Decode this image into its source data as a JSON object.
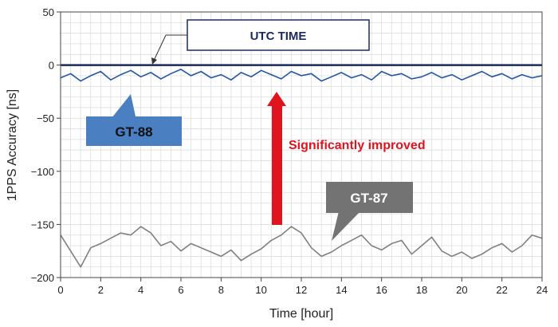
{
  "chart_data": {
    "type": "line",
    "xlabel": "Time [hour]",
    "ylabel": "1PPS Accuracy [ns]",
    "xlim": [
      0,
      24
    ],
    "ylim": [
      -200,
      50
    ],
    "x_ticks": [
      0,
      2,
      4,
      6,
      8,
      10,
      12,
      14,
      16,
      18,
      20,
      22,
      24
    ],
    "y_ticks": [
      50,
      0,
      -50,
      -100,
      -150,
      -200
    ],
    "grid": true,
    "reference_line": {
      "label": "UTC TIME",
      "y": 0,
      "color": "#1a2a5e"
    },
    "series": [
      {
        "name": "GT-88",
        "color": "#2456a6",
        "x": [
          0,
          0.5,
          1,
          1.5,
          2,
          2.5,
          3,
          3.5,
          4,
          4.5,
          5,
          5.5,
          6,
          6.5,
          7,
          7.5,
          8,
          8.5,
          9,
          9.5,
          10,
          10.5,
          11,
          11.5,
          12,
          12.5,
          13,
          13.5,
          14,
          14.5,
          15,
          15.5,
          16,
          16.5,
          17,
          17.5,
          18,
          18.5,
          19,
          19.5,
          20,
          20.5,
          21,
          21.5,
          22,
          22.5,
          23,
          23.5,
          24
        ],
        "values": [
          -12,
          -8,
          -15,
          -10,
          -6,
          -14,
          -9,
          -5,
          -11,
          -7,
          -13,
          -8,
          -4,
          -10,
          -6,
          -12,
          -9,
          -14,
          -7,
          -11,
          -5,
          -9,
          -13,
          -6,
          -10,
          -8,
          -15,
          -11,
          -7,
          -12,
          -9,
          -14,
          -6,
          -10,
          -8,
          -13,
          -11,
          -7,
          -12,
          -9,
          -14,
          -10,
          -6,
          -11,
          -8,
          -13,
          -9,
          -12,
          -10
        ]
      },
      {
        "name": "GT-87",
        "color": "#808080",
        "x": [
          0,
          0.5,
          1,
          1.5,
          2,
          2.5,
          3,
          3.5,
          4,
          4.5,
          5,
          5.5,
          6,
          6.5,
          7,
          7.5,
          8,
          8.5,
          9,
          9.5,
          10,
          10.5,
          11,
          11.5,
          12,
          12.5,
          13,
          13.5,
          14,
          14.5,
          15,
          15.5,
          16,
          16.5,
          17,
          17.5,
          18,
          18.5,
          19,
          19.5,
          20,
          20.5,
          21,
          21.5,
          22,
          22.5,
          23,
          23.5,
          24
        ],
        "values": [
          -160,
          -175,
          -190,
          -172,
          -168,
          -163,
          -158,
          -160,
          -152,
          -158,
          -170,
          -166,
          -175,
          -168,
          -172,
          -176,
          -180,
          -174,
          -184,
          -178,
          -173,
          -165,
          -160,
          -152,
          -158,
          -172,
          -180,
          -176,
          -170,
          -165,
          -160,
          -170,
          -174,
          -168,
          -165,
          -178,
          -170,
          -162,
          -175,
          -180,
          -176,
          -182,
          -178,
          -172,
          -168,
          -176,
          -170,
          -160,
          -163
        ]
      }
    ],
    "annotations": [
      {
        "text": "UTC TIME",
        "style": "outlined-box"
      },
      {
        "text": "GT-88",
        "style": "blue-callout"
      },
      {
        "text": "GT-87",
        "style": "gray-callout"
      },
      {
        "text": "Significantly improved",
        "style": "red-arrow-label",
        "color": "#e0141e"
      }
    ]
  }
}
